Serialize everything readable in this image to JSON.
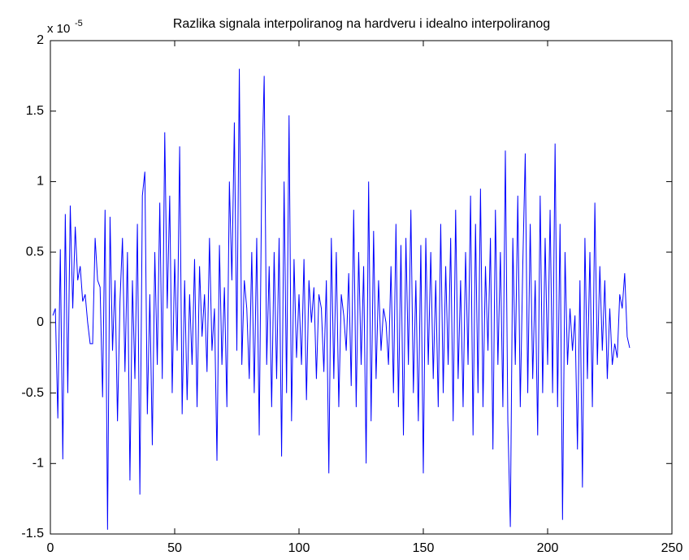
{
  "chart_data": {
    "type": "line",
    "title": "Razlika signala interpoliranog na hardveru i idealno interpoliranog",
    "y_multiplier": {
      "base": "x 10",
      "exponent": "-5"
    },
    "x": [
      1,
      2,
      3,
      4,
      5,
      6,
      7,
      8,
      9,
      10,
      11,
      12,
      13,
      14,
      15,
      16,
      17,
      18,
      19,
      20,
      21,
      22,
      23,
      24,
      25,
      26,
      27,
      28,
      29,
      30,
      31,
      32,
      33,
      34,
      35,
      36,
      37,
      38,
      39,
      40,
      41,
      42,
      43,
      44,
      45,
      46,
      47,
      48,
      49,
      50,
      51,
      52,
      53,
      54,
      55,
      56,
      57,
      58,
      59,
      60,
      61,
      62,
      63,
      64,
      65,
      66,
      67,
      68,
      69,
      70,
      71,
      72,
      73,
      74,
      75,
      76,
      77,
      78,
      79,
      80,
      81,
      82,
      83,
      84,
      85,
      86,
      87,
      88,
      89,
      90,
      91,
      92,
      93,
      94,
      95,
      96,
      97,
      98,
      99,
      100,
      101,
      102,
      103,
      104,
      105,
      106,
      107,
      108,
      109,
      110,
      111,
      112,
      113,
      114,
      115,
      116,
      117,
      118,
      119,
      120,
      121,
      122,
      123,
      124,
      125,
      126,
      127,
      128,
      129,
      130,
      131,
      132,
      133,
      134,
      135,
      136,
      137,
      138,
      139,
      140,
      141,
      142,
      143,
      144,
      145,
      146,
      147,
      148,
      149,
      150,
      151,
      152,
      153,
      154,
      155,
      156,
      157,
      158,
      159,
      160,
      161,
      162,
      163,
      164,
      165,
      166,
      167,
      168,
      169,
      170,
      171,
      172,
      173,
      174,
      175,
      176,
      177,
      178,
      179,
      180,
      181,
      182,
      183,
      184,
      185,
      186,
      187,
      188,
      189,
      190,
      191,
      192,
      193,
      194,
      195,
      196,
      197,
      198,
      199,
      200,
      201,
      202,
      203,
      204,
      205,
      206,
      207,
      208,
      209,
      210,
      211,
      212,
      213,
      214,
      215,
      216,
      217,
      218,
      219,
      220,
      221,
      222,
      223,
      224,
      225,
      226,
      227,
      228,
      229,
      230,
      231,
      232,
      233
    ],
    "series": [
      {
        "color": "#0000ff",
        "values": [
          0.05,
          0.1,
          -0.68,
          0.52,
          -0.97,
          0.77,
          -0.5,
          0.83,
          0.1,
          0.68,
          0.3,
          0.4,
          0.15,
          0.2,
          0.0,
          -0.15,
          -0.15,
          0.6,
          0.3,
          0.25,
          -0.53,
          0.8,
          -1.47,
          0.75,
          -0.2,
          0.3,
          -0.7,
          0.15,
          0.6,
          -0.35,
          0.5,
          -1.12,
          0.3,
          -0.4,
          0.7,
          -1.22,
          0.9,
          1.07,
          -0.65,
          0.2,
          -0.87,
          0.5,
          -0.3,
          0.85,
          -0.4,
          1.35,
          0.1,
          0.9,
          -0.5,
          0.45,
          -0.2,
          1.25,
          -0.65,
          0.3,
          -0.55,
          0.2,
          -0.3,
          0.45,
          -0.6,
          0.4,
          -0.1,
          0.2,
          -0.35,
          0.6,
          -0.2,
          0.1,
          -0.98,
          0.55,
          -0.3,
          0.25,
          -0.6,
          1.0,
          0.3,
          1.42,
          -0.2,
          1.8,
          -0.3,
          0.3,
          0.1,
          -0.4,
          0.5,
          -0.5,
          0.6,
          -0.8,
          1.0,
          1.75,
          -0.3,
          0.4,
          -0.6,
          0.5,
          -0.4,
          0.6,
          -0.95,
          1.0,
          -0.5,
          1.47,
          -0.7,
          0.45,
          -0.25,
          0.2,
          -0.3,
          0.45,
          -0.55,
          0.3,
          0.0,
          0.25,
          -0.4,
          0.2,
          0.1,
          -0.35,
          0.3,
          -1.07,
          0.6,
          -0.4,
          0.5,
          -0.6,
          0.2,
          0.05,
          -0.2,
          0.35,
          -0.45,
          0.8,
          -0.6,
          0.5,
          -0.3,
          0.4,
          -1.0,
          1.0,
          -0.7,
          0.65,
          -0.4,
          0.3,
          -0.2,
          0.1,
          0.0,
          -0.3,
          0.4,
          -0.5,
          0.7,
          -0.6,
          0.55,
          -0.8,
          0.6,
          -0.3,
          0.8,
          -0.5,
          0.3,
          -0.7,
          0.55,
          -1.07,
          0.6,
          -0.3,
          0.5,
          -0.4,
          0.3,
          -0.6,
          0.7,
          -0.5,
          0.4,
          -0.3,
          0.6,
          -0.7,
          0.8,
          -0.4,
          0.3,
          -0.6,
          0.5,
          -0.3,
          0.9,
          -0.8,
          0.7,
          -0.5,
          0.95,
          -0.6,
          0.4,
          -0.2,
          0.6,
          -0.9,
          0.8,
          -0.3,
          0.5,
          -0.6,
          1.22,
          -0.7,
          -1.45,
          0.6,
          -0.3,
          0.9,
          -0.6,
          0.4,
          1.2,
          -0.5,
          0.7,
          -0.4,
          0.3,
          -0.8,
          0.9,
          -0.5,
          0.6,
          -0.3,
          0.8,
          -0.5,
          1.27,
          -0.6,
          0.7,
          -1.4,
          0.5,
          -0.3,
          0.1,
          -0.2,
          0.05,
          -0.9,
          0.3,
          -1.17,
          0.6,
          -0.4,
          0.5,
          -0.6,
          0.85,
          -0.3,
          0.4,
          -0.2,
          0.3,
          -0.4,
          0.1,
          -0.3,
          -0.15,
          -0.25,
          0.2,
          0.1,
          0.35,
          -0.1,
          -0.18
        ]
      }
    ],
    "xlim": [
      0,
      250
    ],
    "xticks": [
      0,
      50,
      100,
      150,
      200,
      250
    ],
    "ylim": [
      -1.5,
      2
    ],
    "yticks": [
      -1.5,
      -1,
      -0.5,
      0,
      0.5,
      1,
      1.5,
      2
    ]
  }
}
